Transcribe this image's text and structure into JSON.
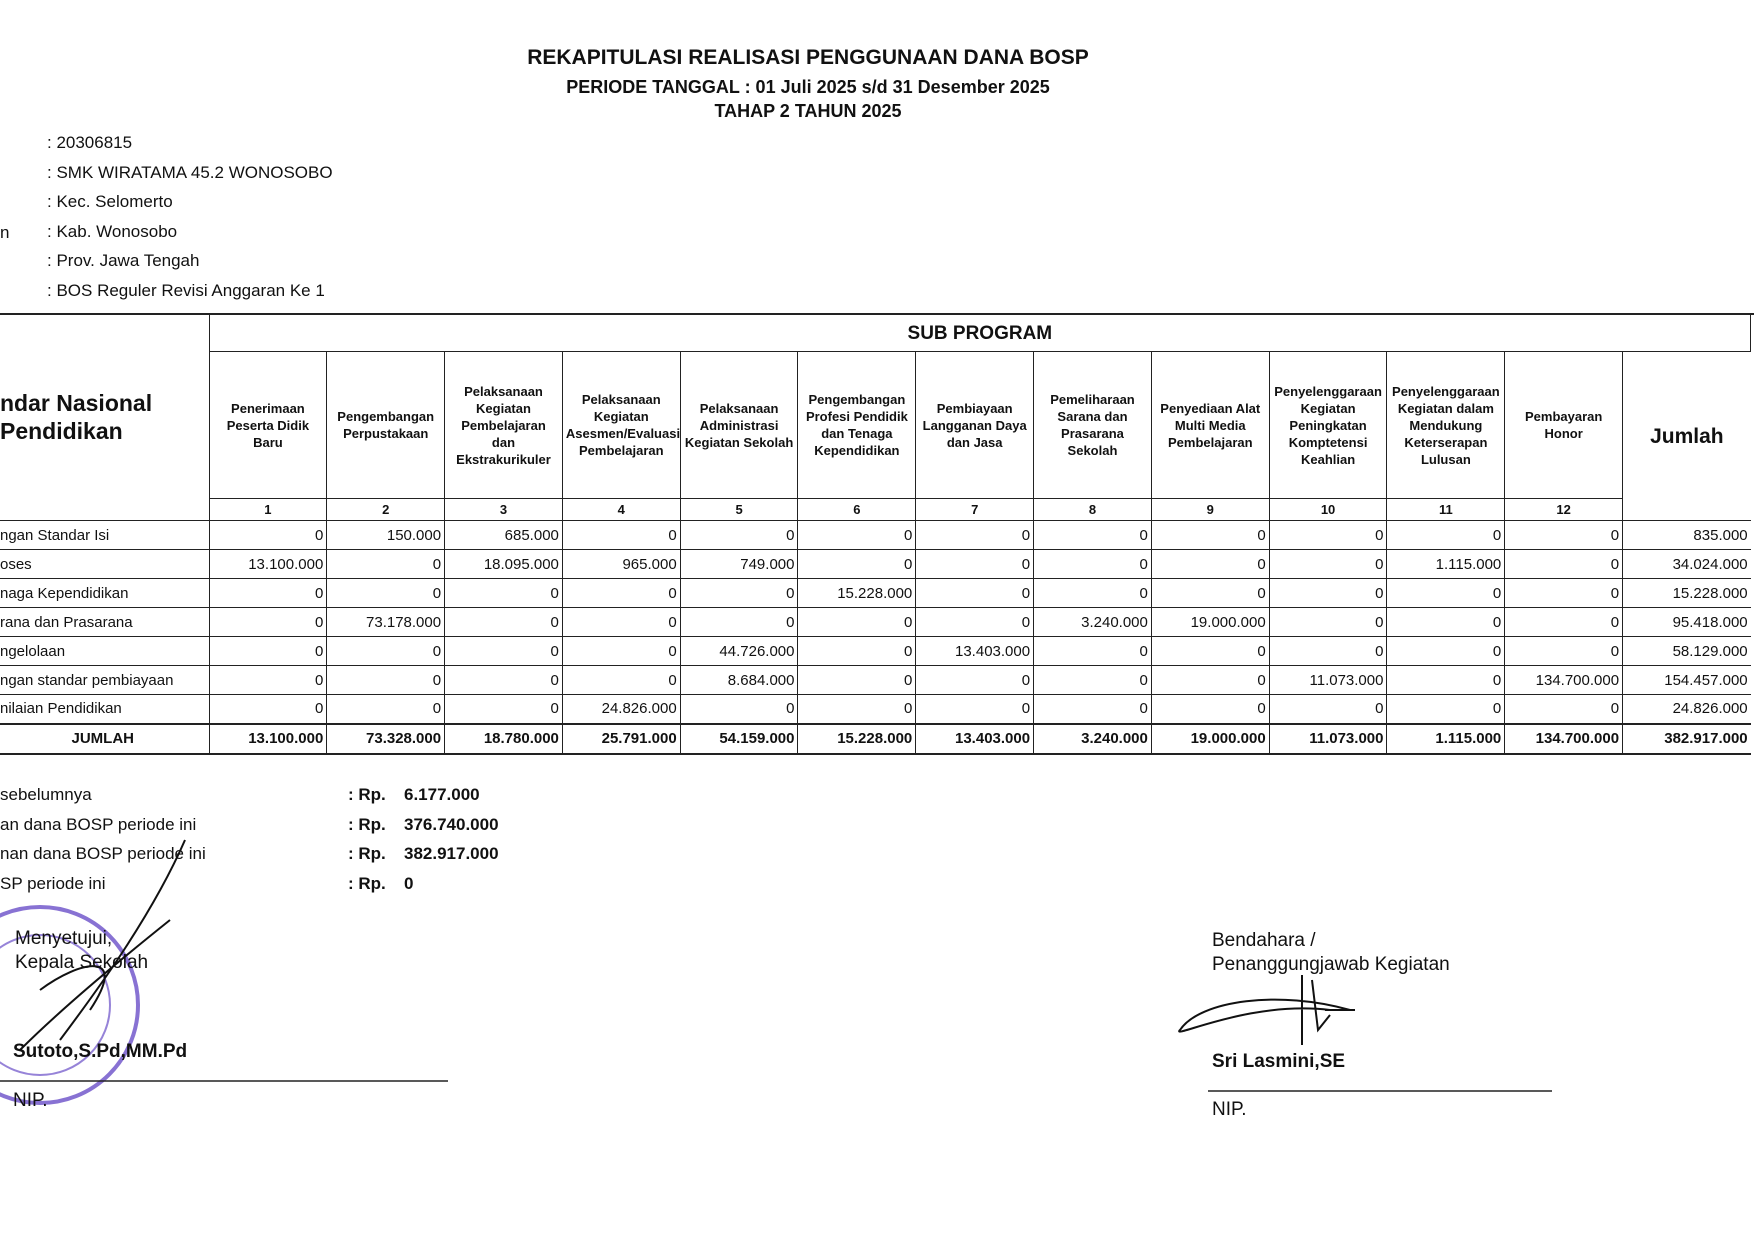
{
  "header": {
    "title": "REKAPITULASI REALISASI PENGGUNAAN DANA BOSP",
    "period": "PERIODE TANGGAL : 01 Juli 2025 s/d 31 Desember 2025",
    "stage": "TAHAP 2 TAHUN 2025"
  },
  "info": {
    "cut_label": "n",
    "values": [
      ": 20306815",
      ": SMK WIRATAMA 45.2 WONOSOBO",
      ": Kec. Selomerto",
      ": Kab. Wonosobo",
      ": Prov. Jawa Tengah",
      ": BOS Reguler Revisi Anggaran Ke 1"
    ]
  },
  "table": {
    "corner_header": [
      "ndar Nasional",
      "Pendidikan"
    ],
    "sub_program": "SUB PROGRAM",
    "columns": [
      "Penerimaan Peserta Didik Baru",
      "Pengembangan Perpustakaan",
      "Pelaksanaan Kegiatan Pembelajaran dan Ekstrakurikuler",
      "Pelaksanaan Kegiatan Asesmen/Evaluasi Pembelajaran",
      "Pelaksanaan Administrasi Kegiatan Sekolah",
      "Pengembangan Profesi Pendidik dan Tenaga Kependidikan",
      "Pembiayaan Langganan Daya dan Jasa",
      "Pemeliharaan Sarana dan Prasarana Sekolah",
      "Penyediaan Alat Multi Media Pembelajaran",
      "Penyelenggaraan Kegiatan Peningkatan Komptetensi Keahlian",
      "Penyelenggaraan Kegiatan dalam Mendukung Keterserapan Lulusan",
      "Pembayaran Honor"
    ],
    "total_header": "Jumlah",
    "column_numbers": [
      "1",
      "2",
      "3",
      "4",
      "5",
      "6",
      "7",
      "8",
      "9",
      "10",
      "11",
      "12"
    ],
    "rows": [
      {
        "label": "ngan Standar Isi",
        "cells": [
          "0",
          "150.000",
          "685.000",
          "0",
          "0",
          "0",
          "0",
          "0",
          "0",
          "0",
          "0",
          "0"
        ],
        "total": "835.000"
      },
      {
        "label": "oses",
        "cells": [
          "13.100.000",
          "0",
          "18.095.000",
          "965.000",
          "749.000",
          "0",
          "0",
          "0",
          "0",
          "0",
          "1.115.000",
          "0"
        ],
        "total": "34.024.000"
      },
      {
        "label": "naga Kependidikan",
        "cells": [
          "0",
          "0",
          "0",
          "0",
          "0",
          "15.228.000",
          "0",
          "0",
          "0",
          "0",
          "0",
          "0"
        ],
        "total": "15.228.000"
      },
      {
        "label": "rana dan Prasarana",
        "cells": [
          "0",
          "73.178.000",
          "0",
          "0",
          "0",
          "0",
          "0",
          "3.240.000",
          "19.000.000",
          "0",
          "0",
          "0"
        ],
        "total": "95.418.000"
      },
      {
        "label": "ngelolaan",
        "cells": [
          "0",
          "0",
          "0",
          "0",
          "44.726.000",
          "0",
          "13.403.000",
          "0",
          "0",
          "0",
          "0",
          "0"
        ],
        "total": "58.129.000"
      },
      {
        "label": "ngan standar pembiayaan",
        "cells": [
          "0",
          "0",
          "0",
          "0",
          "8.684.000",
          "0",
          "0",
          "0",
          "0",
          "11.073.000",
          "0",
          "134.700.000"
        ],
        "total": "154.457.000"
      },
      {
        "label": "nilaian Pendidikan",
        "cells": [
          "0",
          "0",
          "0",
          "24.826.000",
          "0",
          "0",
          "0",
          "0",
          "0",
          "0",
          "0",
          "0"
        ],
        "total": "24.826.000"
      }
    ],
    "total_row": {
      "label": "JUMLAH",
      "cells": [
        "13.100.000",
        "73.328.000",
        "18.780.000",
        "25.791.000",
        "54.159.000",
        "15.228.000",
        "13.403.000",
        "3.240.000",
        "19.000.000",
        "11.073.000",
        "1.115.000",
        "134.700.000"
      ],
      "total": "382.917.000"
    }
  },
  "summary": [
    {
      "label": "sebelumnya",
      "prefix": ": Rp.",
      "amount": "6.177.000"
    },
    {
      "label": "an dana BOSP periode ini",
      "prefix": ": Rp.",
      "amount": "376.740.000"
    },
    {
      "label": "nan dana BOSP periode ini",
      "prefix": ": Rp.",
      "amount": "382.917.000"
    },
    {
      "label": "SP periode ini",
      "prefix": ": Rp.",
      "amount": "0"
    }
  ],
  "signatures": {
    "left": {
      "approval": "Menyetujui,",
      "role": "Kepala Sekolah",
      "name": "Sutoto,S.Pd,MM.Pd",
      "nip": "NIP."
    },
    "right": {
      "role_line1": "Bendahara /",
      "role_line2": "Penanggungjawab Kegiatan",
      "name": "Sri Lasmini,SE",
      "nip": "NIP."
    }
  }
}
